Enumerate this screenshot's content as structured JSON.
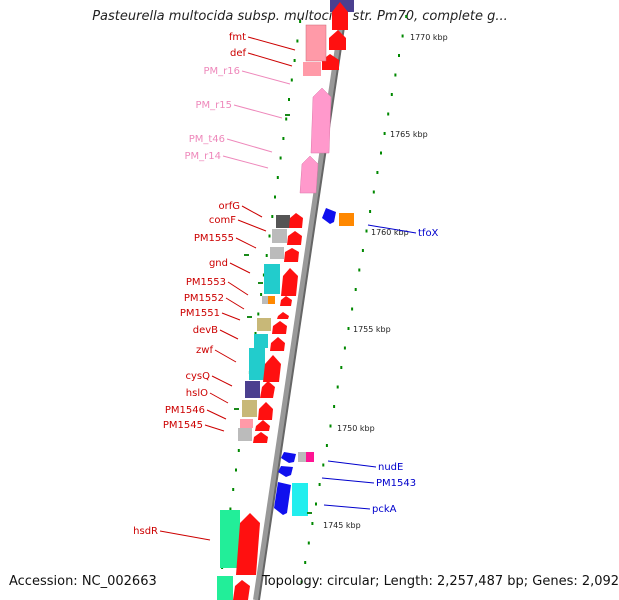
{
  "title": "Pasteurella multocida subsp. multocida str. Pm70, complete g...",
  "accession": "Accession: NC_002663",
  "topology": "Topology: circular; Length: 2,257,487 bp; Genes: 2,092",
  "ticks": [
    "1770 kbp",
    "1765 kbp",
    "1760 kbp",
    "1755 kbp",
    "1750 kbp",
    "1745 kbp"
  ],
  "colors": {
    "cds_forward": "#ff0000",
    "cds_reverse": "#0000ff",
    "rrna": "#ff99cc",
    "trna": "#ff99cc",
    "label_forward": "#cc0000",
    "label_reverse": "#0000cc",
    "label_rna": "#ee88bb",
    "backbone": "#888888",
    "tick_mark": "#008800"
  },
  "left_labels": [
    {
      "text": "fmt",
      "kind": "cds"
    },
    {
      "text": "def",
      "kind": "cds"
    },
    {
      "text": "PM_r16",
      "kind": "rna"
    },
    {
      "text": "PM_r15",
      "kind": "rna"
    },
    {
      "text": "PM_t46",
      "kind": "rna"
    },
    {
      "text": "PM_r14",
      "kind": "rna"
    },
    {
      "text": "orfG",
      "kind": "cds"
    },
    {
      "text": "comF",
      "kind": "cds"
    },
    {
      "text": "PM1555",
      "kind": "cds"
    },
    {
      "text": "gnd",
      "kind": "cds"
    },
    {
      "text": "PM1553",
      "kind": "cds"
    },
    {
      "text": "PM1552",
      "kind": "cds"
    },
    {
      "text": "PM1551",
      "kind": "cds"
    },
    {
      "text": "devB",
      "kind": "cds"
    },
    {
      "text": "zwf",
      "kind": "cds"
    },
    {
      "text": "cysQ",
      "kind": "cds"
    },
    {
      "text": "hslO",
      "kind": "cds"
    },
    {
      "text": "PM1546",
      "kind": "cds"
    },
    {
      "text": "PM1545",
      "kind": "cds"
    },
    {
      "text": "hsdR",
      "kind": "cds"
    }
  ],
  "right_labels": [
    {
      "text": "tfoX",
      "kind": "cds"
    },
    {
      "text": "nudE",
      "kind": "cds"
    },
    {
      "text": "PM1543",
      "kind": "cds"
    },
    {
      "text": "pckA",
      "kind": "cds"
    }
  ]
}
